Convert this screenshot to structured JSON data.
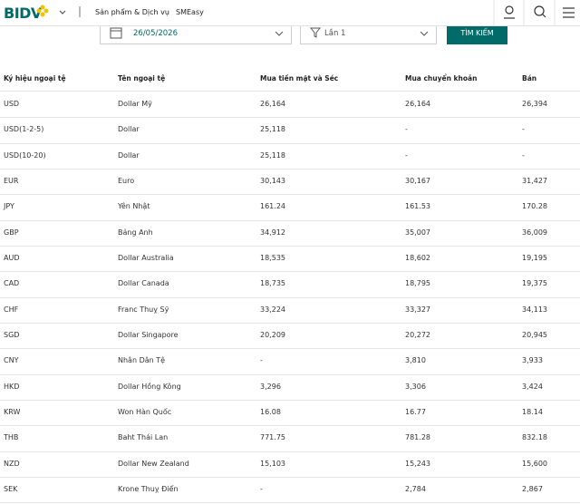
{
  "header": {
    "logo": "BIDV",
    "nav": [
      "Sản phẩm & Dịch vụ",
      "SMEasy"
    ]
  },
  "filters": {
    "date": "26/05/2026",
    "session": "Lần 1",
    "button": "TÌM KIẾM"
  },
  "table": {
    "columns": [
      "Ký hiệu ngoại tệ",
      "Tên ngoại tệ",
      "Mua tiền mặt và Séc",
      "Mua chuyển khoản",
      "Bán"
    ],
    "rows": [
      [
        "USD",
        "Dollar Mỹ",
        "26,164",
        "26,164",
        "26,394"
      ],
      [
        "USD(1-2-5)",
        "Dollar",
        "25,118",
        "-",
        "-"
      ],
      [
        "USD(10-20)",
        "Dollar",
        "25,118",
        "-",
        "-"
      ],
      [
        "EUR",
        "Euro",
        "30,143",
        "30,167",
        "31,427"
      ],
      [
        "JPY",
        "Yên Nhật",
        "161.24",
        "161.53",
        "170.28"
      ],
      [
        "GBP",
        "Bảng Anh",
        "34,912",
        "35,007",
        "36,009"
      ],
      [
        "AUD",
        "Dollar Australia",
        "18,535",
        "18,602",
        "19,195"
      ],
      [
        "CAD",
        "Dollar Canada",
        "18,735",
        "18,795",
        "19,375"
      ],
      [
        "CHF",
        "Franc Thuỵ Sỹ",
        "33,224",
        "33,327",
        "34,113"
      ],
      [
        "SGD",
        "Dollar Singapore",
        "20,209",
        "20,272",
        "20,945"
      ],
      [
        "CNY",
        "Nhân Dân Tệ",
        "-",
        "3,810",
        "3,933"
      ],
      [
        "HKD",
        "Dollar Hồng Kông",
        "3,296",
        "3,306",
        "3,424"
      ],
      [
        "KRW",
        "Won Hàn Quốc",
        "16.08",
        "16.77",
        "18.14"
      ],
      [
        "THB",
        "Baht Thái Lan",
        "771.75",
        "781.28",
        "832.18"
      ],
      [
        "NZD",
        "Dollar New Zealand",
        "15,103",
        "15,243",
        "15,600"
      ],
      [
        "SEK",
        "Krone Thuỵ Điển",
        "-",
        "2,784",
        "2,867"
      ]
    ]
  }
}
